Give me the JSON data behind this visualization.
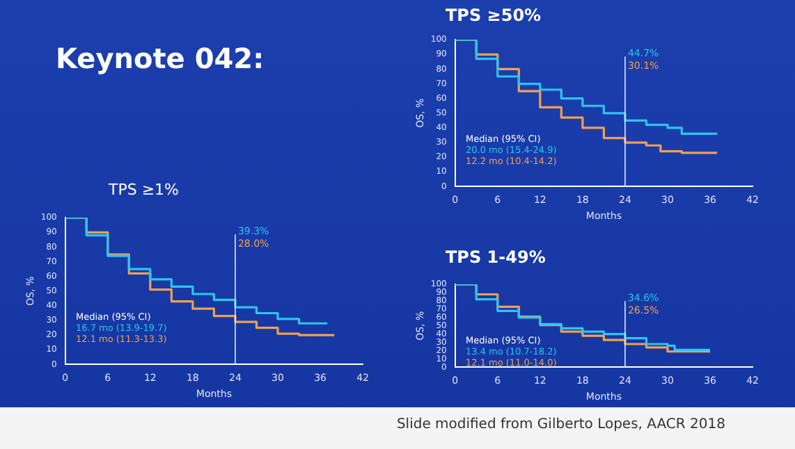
{
  "chart_data": [
    {
      "type": "step",
      "title": "Keynote 042:",
      "subtitle": "TPS ≥1%",
      "xlabel": "Months",
      "ylabel": "OS, %",
      "xlim": [
        0,
        42
      ],
      "xticks": [
        0,
        6,
        12,
        18,
        24,
        30,
        36,
        42
      ],
      "ylim": [
        0,
        100
      ],
      "yticks": [
        0,
        10,
        20,
        30,
        40,
        50,
        60,
        70,
        80,
        90,
        100
      ],
      "grid": false,
      "legend": false,
      "marker": "none",
      "series": [
        {
          "color": "#2ec4f0",
          "x": [
            0,
            3,
            6,
            9,
            12,
            15,
            18,
            21,
            24,
            27,
            30,
            33,
            36,
            37
          ],
          "values": [
            100,
            88,
            74,
            65,
            58,
            53,
            48,
            44,
            39,
            35,
            31,
            28,
            28,
            28
          ]
        },
        {
          "color": "#f0a050",
          "x": [
            0,
            3,
            6,
            9,
            12,
            15,
            18,
            21,
            24,
            27,
            30,
            33,
            36,
            38
          ],
          "values": [
            100,
            90,
            75,
            62,
            51,
            43,
            38,
            33,
            29,
            25,
            21,
            20,
            20,
            20
          ]
        }
      ],
      "ref_lines": [
        {
          "axis": "x",
          "value": 24,
          "color": "#e0e8ff"
        }
      ],
      "annotations": [
        "Median (95% CI)",
        "16.7 mo (13.9-19.7)",
        "12.1 mo (11.3-13.3)",
        "39.3%",
        "28.0%"
      ]
    },
    {
      "type": "step",
      "title": "TPS ≥50%",
      "xlabel": "Months",
      "ylabel": "OS, %",
      "xlim": [
        0,
        42
      ],
      "xticks": [
        0,
        6,
        12,
        18,
        24,
        30,
        36,
        42
      ],
      "ylim": [
        0,
        100
      ],
      "yticks": [
        0,
        10,
        20,
        30,
        40,
        50,
        60,
        70,
        80,
        90,
        100
      ],
      "grid": false,
      "legend": false,
      "marker": "none",
      "series": [
        {
          "color": "#2ec4f0",
          "x": [
            0,
            3,
            6,
            9,
            12,
            15,
            18,
            21,
            24,
            27,
            30,
            32,
            37
          ],
          "values": [
            100,
            87,
            75,
            70,
            66,
            60,
            55,
            50,
            45,
            42,
            40,
            36,
            36
          ]
        },
        {
          "color": "#f0a050",
          "x": [
            0,
            3,
            6,
            9,
            12,
            15,
            18,
            21,
            24,
            27,
            29,
            32,
            37
          ],
          "values": [
            100,
            90,
            80,
            65,
            54,
            47,
            40,
            33,
            30,
            28,
            24,
            23,
            23
          ]
        }
      ],
      "ref_lines": [
        {
          "axis": "x",
          "value": 24,
          "color": "#e0e8ff"
        }
      ],
      "annotations": [
        "Median (95% CI)",
        "20.0 mo (15.4-24.9)",
        "12.2 mo (10.4-14.2)",
        "44.7%",
        "30.1%"
      ]
    },
    {
      "type": "step",
      "title": "TPS 1-49%",
      "xlabel": "Months",
      "ylabel": "OS, %",
      "xlim": [
        0,
        42
      ],
      "xticks": [
        0,
        6,
        12,
        18,
        24,
        30,
        36,
        42
      ],
      "ylim": [
        0,
        100
      ],
      "yticks": [
        0,
        10,
        20,
        30,
        40,
        50,
        60,
        70,
        80,
        90,
        100
      ],
      "grid": false,
      "legend": false,
      "marker": "none",
      "series": [
        {
          "color": "#2ec4f0",
          "x": [
            0,
            3,
            6,
            9,
            12,
            15,
            18,
            21,
            24,
            27,
            30,
            31,
            36
          ],
          "values": [
            100,
            82,
            68,
            60,
            52,
            47,
            43,
            40,
            35,
            28,
            26,
            21,
            21
          ]
        },
        {
          "color": "#f0a050",
          "x": [
            0,
            3,
            6,
            9,
            12,
            15,
            18,
            21,
            24,
            27,
            30,
            36
          ],
          "values": [
            100,
            88,
            73,
            61,
            51,
            43,
            38,
            33,
            28,
            24,
            19,
            19
          ]
        }
      ],
      "ref_lines": [
        {
          "axis": "x",
          "value": 24,
          "color": "#e0e8ff"
        }
      ],
      "annotations": [
        "Median (95% CI)",
        "13.4 mo (10.7-18.2)",
        "12.1 mo (11.0-14.0)",
        "34.6%",
        "26.5%",
        "Slide modified from Gilberto Lopes, AACR 2018"
      ]
    }
  ]
}
